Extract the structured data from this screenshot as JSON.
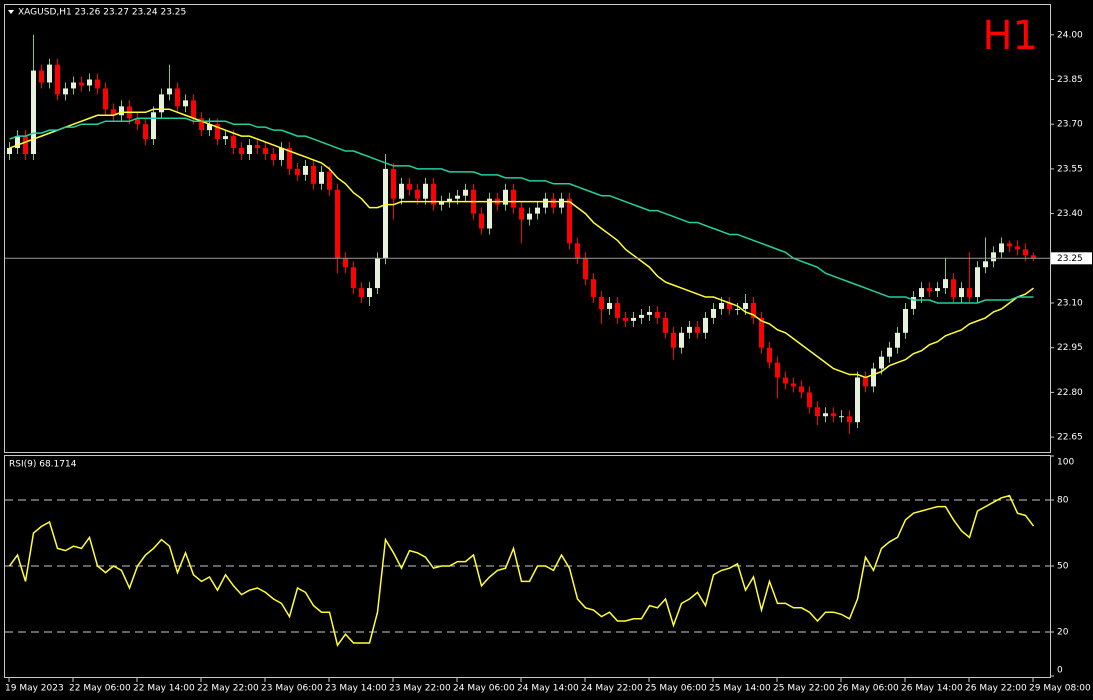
{
  "chart_data": [
    {
      "type": "candlestick",
      "header": "XAGUSD,H1  23.26 23.27 23.24 23.25",
      "timeframe_label": "H1",
      "categories": [
        "19 May 2023",
        null,
        null,
        null,
        null,
        null,
        null,
        null,
        "22 May 06:00",
        null,
        null,
        null,
        null,
        null,
        null,
        null,
        "22 May 14:00",
        null,
        null,
        null,
        null,
        null,
        null,
        null,
        "22 May 22:00",
        null,
        null,
        null,
        null,
        null,
        null,
        null,
        "23 May 06:00",
        null,
        null,
        null,
        null,
        null,
        null,
        null,
        "23 May 14:00",
        null,
        null,
        null,
        null,
        null,
        null,
        null,
        "23 May 22:00",
        null,
        null,
        null,
        null,
        null,
        null,
        null,
        "24 May 06:00",
        null,
        null,
        null,
        null,
        null,
        null,
        null,
        "24 May 14:00",
        null,
        null,
        null,
        null,
        null,
        null,
        null,
        "24 May 22:00",
        null,
        null,
        null,
        null,
        null,
        null,
        null,
        "25 May 06:00",
        null,
        null,
        null,
        null,
        null,
        null,
        null,
        "25 May 14:00",
        null,
        null,
        null,
        null,
        null,
        null,
        null,
        "25 May 22:00",
        null,
        null,
        null,
        null,
        null,
        null,
        null,
        "26 May 06:00",
        null,
        null,
        null,
        null,
        null,
        null,
        null,
        "26 May 14:00",
        null,
        null,
        null,
        null,
        null,
        null,
        null,
        "26 May 22:00",
        null,
        null,
        null,
        null,
        null,
        null,
        null,
        "29 May 08:00"
      ],
      "open": [
        23.6,
        23.62,
        23.66,
        23.6,
        23.88,
        23.84,
        23.9,
        23.8,
        23.82,
        23.84,
        23.83,
        23.85,
        23.82,
        23.75,
        23.73,
        23.76,
        23.72,
        23.7,
        23.65,
        23.74,
        23.8,
        23.82,
        23.76,
        23.78,
        23.72,
        23.68,
        23.7,
        23.65,
        23.66,
        23.62,
        23.6,
        23.63,
        23.62,
        23.6,
        23.58,
        23.62,
        23.55,
        23.53,
        23.56,
        23.5,
        23.54,
        23.48,
        23.25,
        23.22,
        23.15,
        23.12,
        23.15,
        23.25,
        23.55,
        23.45,
        23.5,
        23.48,
        23.45,
        23.5,
        23.43,
        23.44,
        23.45,
        23.46,
        23.48,
        23.4,
        23.35,
        23.45,
        23.43,
        23.48,
        23.42,
        23.38,
        23.4,
        23.42,
        23.45,
        23.42,
        23.45,
        23.3,
        23.25,
        23.18,
        23.12,
        23.08,
        23.1,
        23.05,
        23.04,
        23.05,
        23.06,
        23.07,
        23.05,
        23.0,
        22.95,
        23.0,
        23.02,
        23.0,
        23.05,
        23.08,
        23.1,
        23.08,
        23.08,
        23.1,
        23.05,
        22.95,
        22.9,
        22.85,
        22.83,
        22.82,
        22.8,
        22.75,
        22.72,
        22.73,
        22.72,
        22.72,
        22.7,
        22.85,
        22.82,
        22.88,
        22.92,
        22.95,
        23.0,
        23.08,
        23.12,
        23.15,
        23.14,
        23.15,
        23.18,
        23.12,
        23.15,
        23.12,
        23.22,
        23.24,
        23.27,
        23.3,
        23.29,
        23.28,
        23.26
      ],
      "high": [
        23.64,
        23.68,
        23.68,
        24.0,
        23.9,
        23.92,
        23.92,
        23.84,
        23.86,
        23.86,
        23.87,
        23.87,
        23.84,
        23.77,
        23.78,
        23.78,
        23.74,
        23.72,
        23.76,
        23.82,
        23.9,
        23.84,
        23.8,
        23.8,
        23.74,
        23.72,
        23.72,
        23.68,
        23.68,
        23.64,
        23.65,
        23.65,
        23.64,
        23.62,
        23.64,
        23.64,
        23.57,
        23.58,
        23.58,
        23.56,
        23.56,
        23.5,
        23.27,
        23.24,
        23.17,
        23.17,
        23.27,
        23.6,
        23.57,
        23.52,
        23.52,
        23.5,
        23.52,
        23.52,
        23.46,
        23.47,
        23.48,
        23.5,
        23.5,
        23.42,
        23.47,
        23.47,
        23.5,
        23.5,
        23.44,
        23.42,
        23.44,
        23.47,
        23.47,
        23.47,
        23.47,
        23.32,
        23.27,
        23.2,
        23.14,
        23.12,
        23.12,
        23.07,
        23.07,
        23.08,
        23.09,
        23.09,
        23.07,
        23.02,
        23.02,
        23.04,
        23.04,
        23.07,
        23.1,
        23.12,
        23.12,
        23.1,
        23.13,
        23.12,
        23.07,
        22.97,
        22.92,
        22.87,
        22.85,
        22.84,
        22.82,
        22.77,
        22.75,
        22.75,
        22.74,
        22.74,
        22.87,
        22.87,
        22.9,
        22.94,
        22.97,
        23.02,
        23.1,
        23.14,
        23.17,
        23.17,
        23.17,
        23.25,
        23.2,
        23.17,
        23.27,
        23.24,
        23.32,
        23.29,
        23.32,
        23.31,
        23.31,
        23.3,
        23.27
      ],
      "low": [
        23.58,
        23.6,
        23.58,
        23.58,
        23.82,
        23.82,
        23.78,
        23.78,
        23.8,
        23.81,
        23.81,
        23.8,
        23.73,
        23.71,
        23.71,
        23.7,
        23.68,
        23.63,
        23.63,
        23.72,
        23.78,
        23.74,
        23.74,
        23.7,
        23.66,
        23.66,
        23.63,
        23.63,
        23.6,
        23.58,
        23.58,
        23.6,
        23.58,
        23.56,
        23.56,
        23.53,
        23.51,
        23.51,
        23.48,
        23.48,
        23.46,
        23.2,
        23.2,
        23.13,
        23.1,
        23.09,
        23.13,
        23.23,
        23.38,
        23.43,
        23.46,
        23.43,
        23.43,
        23.41,
        23.41,
        23.42,
        23.43,
        23.44,
        23.38,
        23.33,
        23.33,
        23.41,
        23.41,
        23.4,
        23.3,
        23.36,
        23.38,
        23.4,
        23.4,
        23.4,
        23.28,
        23.23,
        23.16,
        23.1,
        23.03,
        23.06,
        23.03,
        23.02,
        23.02,
        23.03,
        23.04,
        23.03,
        22.98,
        22.91,
        22.93,
        22.98,
        22.98,
        22.98,
        23.03,
        23.06,
        23.06,
        23.06,
        23.06,
        23.03,
        22.93,
        22.88,
        22.78,
        22.81,
        22.8,
        22.78,
        22.73,
        22.69,
        22.7,
        22.7,
        22.7,
        22.66,
        22.68,
        22.8,
        22.8,
        22.86,
        22.9,
        22.93,
        22.98,
        23.06,
        23.1,
        23.12,
        23.12,
        23.13,
        23.1,
        23.1,
        23.1,
        23.1,
        23.2,
        23.22,
        23.25,
        23.27,
        23.26,
        23.24,
        23.24
      ],
      "close": [
        23.62,
        23.66,
        23.6,
        23.88,
        23.84,
        23.9,
        23.8,
        23.82,
        23.84,
        23.83,
        23.85,
        23.82,
        23.75,
        23.73,
        23.76,
        23.72,
        23.7,
        23.65,
        23.74,
        23.8,
        23.82,
        23.76,
        23.78,
        23.72,
        23.68,
        23.7,
        23.65,
        23.66,
        23.62,
        23.6,
        23.63,
        23.62,
        23.6,
        23.58,
        23.62,
        23.55,
        23.53,
        23.56,
        23.5,
        23.54,
        23.48,
        23.25,
        23.22,
        23.15,
        23.12,
        23.15,
        23.25,
        23.55,
        23.45,
        23.5,
        23.48,
        23.45,
        23.5,
        23.43,
        23.44,
        23.45,
        23.46,
        23.48,
        23.4,
        23.35,
        23.45,
        23.43,
        23.48,
        23.42,
        23.38,
        23.4,
        23.42,
        23.45,
        23.42,
        23.45,
        23.3,
        23.25,
        23.18,
        23.12,
        23.08,
        23.1,
        23.05,
        23.04,
        23.05,
        23.06,
        23.07,
        23.05,
        23.0,
        22.95,
        23.0,
        23.02,
        23.0,
        23.05,
        23.08,
        23.1,
        23.08,
        23.08,
        23.1,
        23.05,
        22.95,
        22.9,
        22.85,
        22.83,
        22.82,
        22.8,
        22.75,
        22.72,
        22.73,
        22.72,
        22.72,
        22.7,
        22.85,
        22.82,
        22.88,
        22.92,
        22.95,
        23.0,
        23.08,
        23.12,
        23.15,
        23.14,
        23.15,
        23.18,
        23.12,
        23.15,
        23.12,
        23.22,
        23.24,
        23.27,
        23.3,
        23.29,
        23.28,
        23.26,
        23.25
      ],
      "up_color": "#e6f2dc",
      "up_wick": "#7fc47f",
      "down_color": "#ff0000",
      "overlays": [
        {
          "color": "#ffff33",
          "values": [
            23.62,
            23.63,
            23.64,
            23.65,
            23.66,
            23.67,
            23.68,
            23.69,
            23.7,
            23.71,
            23.72,
            23.73,
            23.73,
            23.73,
            23.74,
            23.74,
            23.74,
            23.74,
            23.75,
            23.75,
            23.75,
            23.74,
            23.73,
            23.72,
            23.71,
            23.7,
            23.69,
            23.68,
            23.67,
            23.66,
            23.66,
            23.65,
            23.64,
            23.63,
            23.62,
            23.61,
            23.6,
            23.59,
            23.58,
            23.57,
            23.55,
            23.52,
            23.5,
            23.47,
            23.45,
            23.42,
            23.42,
            23.43,
            23.43,
            23.44,
            23.44,
            23.44,
            23.44,
            23.44,
            23.44,
            23.44,
            23.44,
            23.44,
            23.44,
            23.44,
            23.44,
            23.44,
            23.44,
            23.44,
            23.44,
            23.44,
            23.44,
            23.44,
            23.44,
            23.44,
            23.44,
            23.42,
            23.4,
            23.37,
            23.35,
            23.33,
            23.31,
            23.28,
            23.26,
            23.24,
            23.22,
            23.19,
            23.17,
            23.16,
            23.15,
            23.14,
            23.13,
            23.12,
            23.12,
            23.11,
            23.1,
            23.09,
            23.07,
            23.06,
            23.04,
            23.03,
            23.01,
            23.0,
            22.98,
            22.96,
            22.94,
            22.92,
            22.9,
            22.88,
            22.87,
            22.86,
            22.86,
            22.85,
            22.86,
            22.87,
            22.89,
            22.9,
            22.91,
            22.93,
            22.94,
            22.96,
            22.97,
            22.99,
            23.0,
            23.01,
            23.03,
            23.04,
            23.05,
            23.07,
            23.08,
            23.1,
            23.12,
            23.13,
            23.15
          ]
        },
        {
          "color": "#20d0a0",
          "values": [
            23.65,
            23.66,
            23.66,
            23.67,
            23.67,
            23.68,
            23.68,
            23.69,
            23.69,
            23.7,
            23.7,
            23.7,
            23.71,
            23.71,
            23.71,
            23.71,
            23.72,
            23.72,
            23.72,
            23.72,
            23.72,
            23.72,
            23.72,
            23.71,
            23.71,
            23.71,
            23.71,
            23.71,
            23.7,
            23.7,
            23.7,
            23.69,
            23.69,
            23.68,
            23.68,
            23.67,
            23.66,
            23.66,
            23.65,
            23.64,
            23.63,
            23.62,
            23.61,
            23.61,
            23.6,
            23.59,
            23.58,
            23.57,
            23.56,
            23.56,
            23.56,
            23.55,
            23.55,
            23.55,
            23.55,
            23.54,
            23.54,
            23.54,
            23.54,
            23.53,
            23.53,
            23.53,
            23.52,
            23.52,
            23.52,
            23.51,
            23.51,
            23.51,
            23.5,
            23.5,
            23.5,
            23.49,
            23.48,
            23.47,
            23.46,
            23.46,
            23.45,
            23.44,
            23.43,
            23.42,
            23.41,
            23.41,
            23.4,
            23.39,
            23.38,
            23.37,
            23.37,
            23.36,
            23.35,
            23.34,
            23.33,
            23.33,
            23.32,
            23.31,
            23.3,
            23.29,
            23.28,
            23.27,
            23.25,
            23.24,
            23.23,
            23.22,
            23.2,
            23.19,
            23.18,
            23.17,
            23.16,
            23.15,
            23.14,
            23.13,
            23.12,
            23.12,
            23.12,
            23.11,
            23.11,
            23.11,
            23.1,
            23.1,
            23.1,
            23.1,
            23.1,
            23.1,
            23.11,
            23.11,
            23.11,
            23.11,
            23.12,
            23.12,
            23.12
          ]
        }
      ],
      "current_price": 23.25,
      "ylim": [
        22.6,
        24.1
      ],
      "yticks": [
        {
          "value": 24,
          "label": "24.00"
        },
        23.85,
        {
          "value": 23.7,
          "label": "23.70"
        },
        23.55,
        {
          "value": 23.4,
          "label": "23.40"
        },
        23.25,
        {
          "value": 23.1,
          "label": "23.10"
        },
        22.95,
        {
          "value": 22.8,
          "label": "22.80"
        },
        22.65
      ]
    },
    {
      "type": "line",
      "title": "RSI(9) 68.1714",
      "color": "#ffff33",
      "values": [
        50,
        55,
        43,
        65,
        68,
        70,
        58,
        57,
        59,
        58,
        63,
        50,
        47,
        50,
        48,
        40,
        50,
        55,
        58,
        62,
        59,
        47,
        56,
        46,
        43,
        45,
        39,
        46,
        41,
        37,
        39,
        40,
        38,
        35,
        33,
        27,
        40,
        38,
        32,
        29,
        29,
        14,
        19,
        15,
        15,
        15,
        29,
        62,
        56,
        49,
        57,
        56,
        54,
        49,
        50,
        50,
        52,
        52,
        55,
        41,
        45,
        48,
        49,
        58,
        43,
        43,
        50,
        50,
        48,
        55,
        49,
        35,
        31,
        30,
        27,
        29,
        25,
        25,
        26,
        26,
        32,
        31,
        35,
        23,
        33,
        35,
        38,
        32,
        46,
        48,
        49,
        51,
        39,
        45,
        30,
        43,
        33,
        33,
        31,
        31,
        29,
        25,
        29,
        29,
        28,
        26,
        35,
        54,
        48,
        58,
        61,
        63,
        71,
        74,
        75,
        76,
        77,
        77,
        71,
        66,
        63,
        75,
        77,
        79,
        81,
        82,
        74,
        73,
        68.1714
      ],
      "ylim": [
        0,
        100
      ],
      "yticks": [
        100,
        80,
        50,
        20,
        0
      ],
      "levels": [
        80,
        50,
        20
      ]
    }
  ]
}
